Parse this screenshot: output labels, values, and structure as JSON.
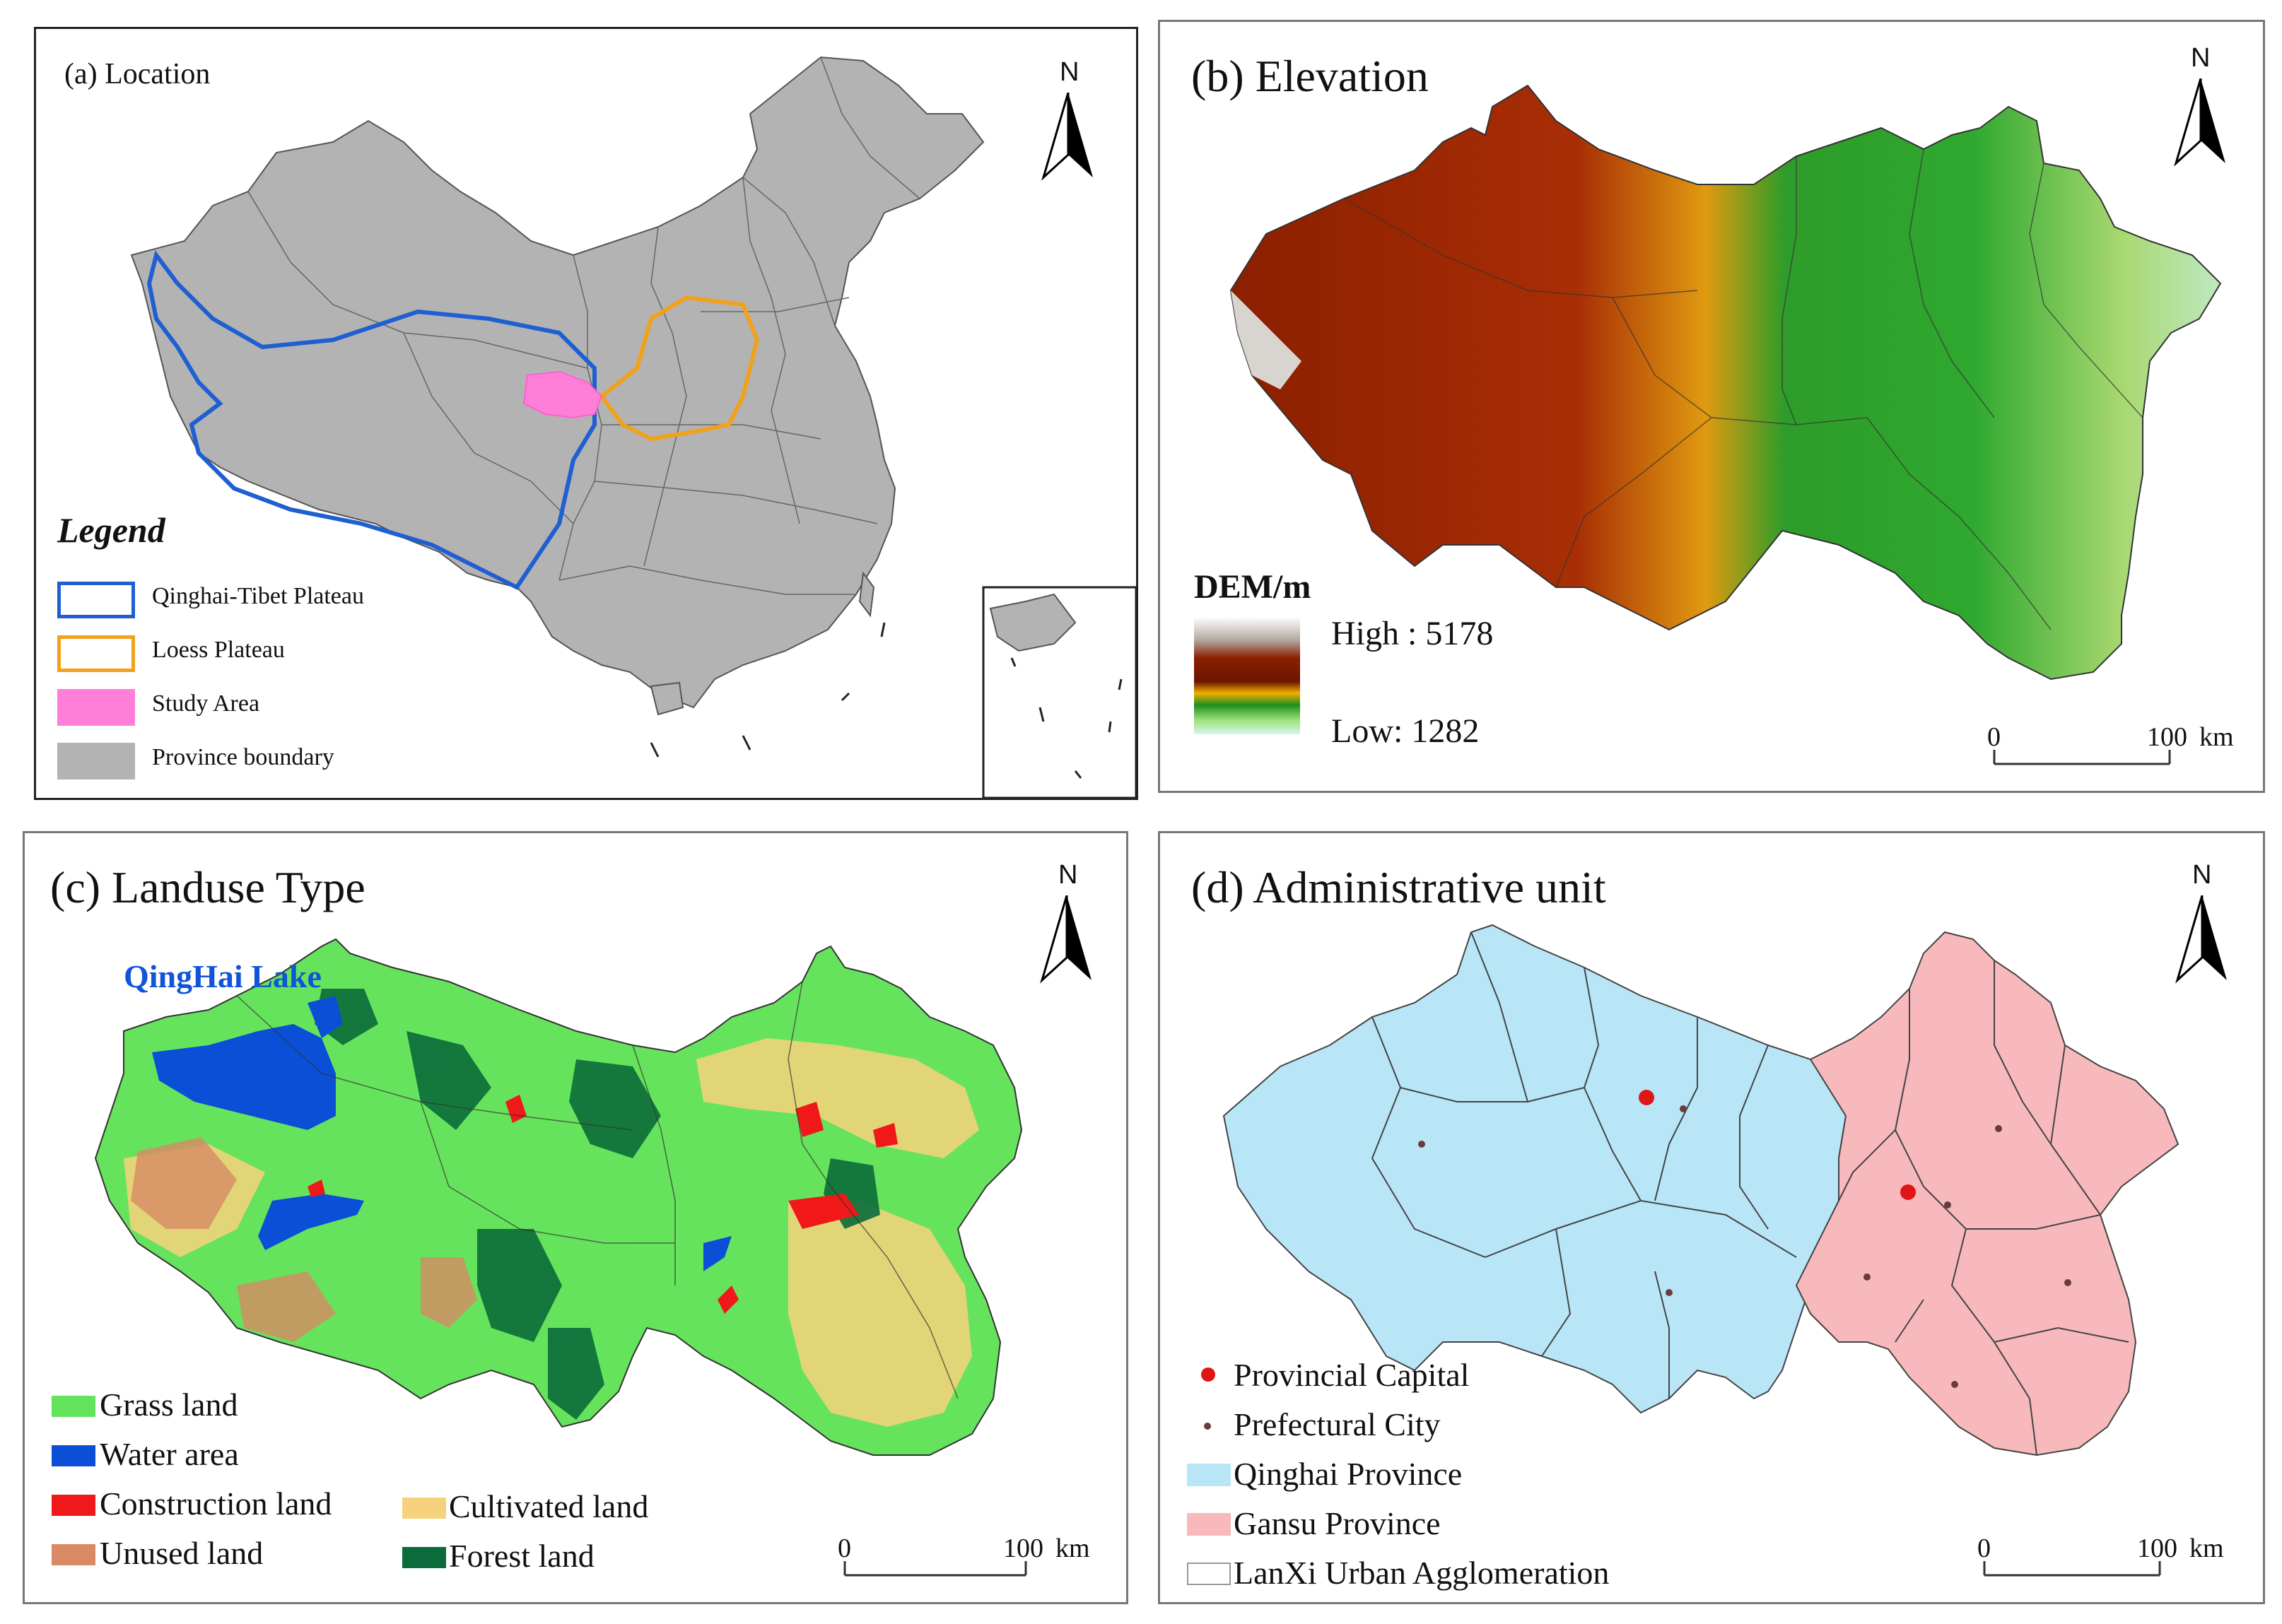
{
  "panels": {
    "a": {
      "title": "(a) Location",
      "north": "N",
      "legend_title": "Legend",
      "legend": [
        {
          "label": "Qinghai-Tibet Plateau",
          "color": "#1f5fd1",
          "style": "outline"
        },
        {
          "label": "Loess Plateau",
          "color": "#f0a21c",
          "style": "outline"
        },
        {
          "label": "Study Area",
          "color": "#ff7fd8",
          "style": "fill"
        },
        {
          "label": "Province boundary",
          "color": "#b3b3b3",
          "style": "fill"
        }
      ]
    },
    "b": {
      "title": "(b) Elevation",
      "north": "N",
      "legend_title": "DEM/m",
      "high": "High : 5178",
      "low": "Low: 1282",
      "scale": {
        "zero": "0",
        "end": "100",
        "unit": "km"
      }
    },
    "c": {
      "title": "(c) Landuse Type",
      "north": "N",
      "lake_label": "QingHai Lake",
      "legend": [
        {
          "label": "Grass land",
          "color": "#66e35c"
        },
        {
          "label": "Water area",
          "color": "#0a4fd6"
        },
        {
          "label": "Construction land",
          "color": "#f01818"
        },
        {
          "label": "Unused land",
          "color": "#d88a64"
        },
        {
          "label": "Cultivated land",
          "color": "#f7d27c"
        },
        {
          "label": "Forest land",
          "color": "#0b6b3a"
        }
      ],
      "scale": {
        "zero": "0",
        "end": "100",
        "unit": "km"
      }
    },
    "d": {
      "title": "(d) Administrative unit",
      "north": "N",
      "legend": [
        {
          "label": "Provincial Capital",
          "color": "#e01515",
          "style": "dot-large"
        },
        {
          "label": "Prefectural City",
          "color": "#6b3b3b",
          "style": "dot-small"
        },
        {
          "label": "Qinghai Province",
          "color": "#b9e6f7",
          "style": "fill"
        },
        {
          "label": "Gansu Province",
          "color": "#f7b9bc",
          "style": "fill"
        },
        {
          "label": "LanXi Urban  Agglomeration",
          "color": "#ffffff",
          "style": "fill"
        }
      ],
      "scale": {
        "zero": "0",
        "end": "100",
        "unit": "km"
      }
    }
  }
}
